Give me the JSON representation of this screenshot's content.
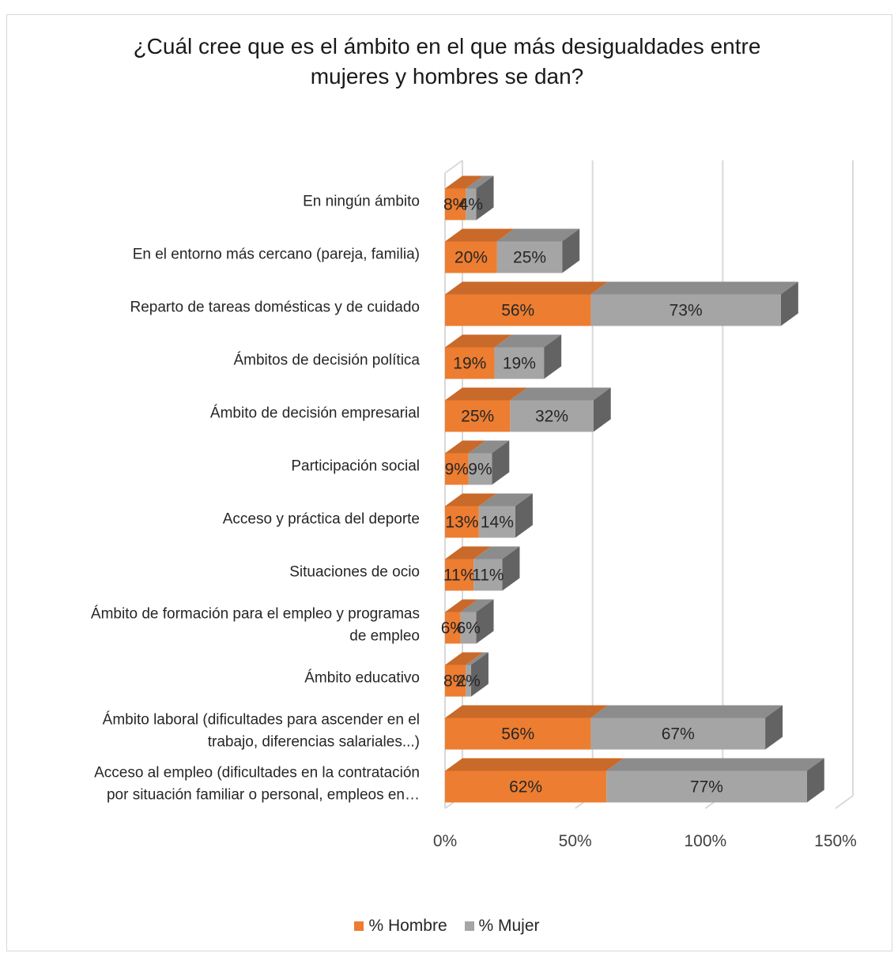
{
  "chart_data": {
    "type": "bar",
    "orientation": "horizontal",
    "stacked": true,
    "title": [
      "¿Cuál cree que es el ámbito en el que más desigualdades entre",
      "mujeres y hombres se dan?"
    ],
    "categories": [
      [
        "En ningún ámbito"
      ],
      [
        "En el entorno más cercano (pareja, familia)"
      ],
      [
        "Reparto de tareas domésticas y de cuidado"
      ],
      [
        "Ámbitos de decisión política"
      ],
      [
        "Ámbito de decisión empresarial"
      ],
      [
        "Participación social"
      ],
      [
        "Acceso y práctica del deporte"
      ],
      [
        "Situaciones de ocio"
      ],
      [
        "Ámbito de formación para el empleo y programas",
        "de empleo"
      ],
      [
        "Ámbito educativo"
      ],
      [
        "Ámbito laboral (dificultades para ascender en el",
        "trabajo, diferencias salariales...)"
      ],
      [
        "Acceso al empleo (dificultades en la contratación",
        "por situación familiar o personal, empleos en…"
      ]
    ],
    "series": [
      {
        "name": "% Hombre",
        "color": "#ed7d31",
        "values": [
          8,
          20,
          56,
          19,
          25,
          9,
          13,
          11,
          6,
          8,
          56,
          62
        ],
        "labels": [
          "8%",
          "20%",
          "56%",
          "19%",
          "25%",
          "9%",
          "13%",
          "11%",
          "6%",
          "8%",
          "56%",
          "62%"
        ]
      },
      {
        "name": "% Mujer",
        "color": "#a5a5a5",
        "values": [
          4,
          25,
          73,
          19,
          32,
          9,
          14,
          11,
          6,
          2,
          67,
          77
        ],
        "labels": [
          "4%",
          "25%",
          "73%",
          "19%",
          "32%",
          "9%",
          "14%",
          "11%",
          "6%",
          "2%",
          "67%",
          "77%"
        ]
      }
    ],
    "xlim": [
      0,
      150
    ],
    "xticks": [
      0,
      50,
      100,
      150
    ],
    "xtick_labels": [
      "0%",
      "50%",
      "100%",
      "150%"
    ],
    "grid": true,
    "legend_position": "bottom",
    "style": "3d"
  }
}
